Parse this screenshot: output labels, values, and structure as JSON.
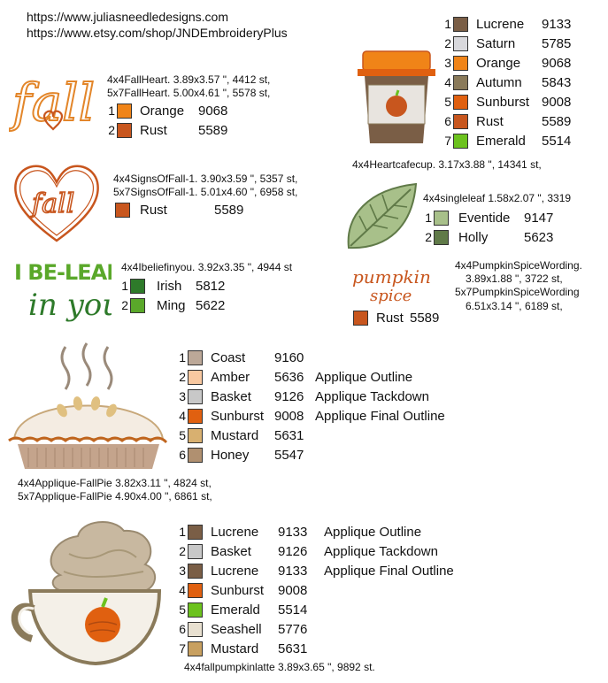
{
  "header": {
    "url1": "https://www.juliasneedledesigns.com",
    "url2": "https://www.etsy.com/shop/JNDEmbroideryPlus"
  },
  "cafecup": {
    "threads": [
      {
        "n": "1",
        "name": "Lucrene",
        "code": "9133",
        "color": "#7a5e46"
      },
      {
        "n": "2",
        "name": "Saturn",
        "code": "5785",
        "color": "#d8d8dc"
      },
      {
        "n": "3",
        "name": "Orange",
        "code": "9068",
        "color": "#f08418"
      },
      {
        "n": "4",
        "name": "Autumn",
        "code": "5843",
        "color": "#8a7a5a"
      },
      {
        "n": "5",
        "name": "Sunburst",
        "code": "9008",
        "color": "#e06010"
      },
      {
        "n": "6",
        "name": "Rust",
        "code": "5589",
        "color": "#c8561e"
      },
      {
        "n": "7",
        "name": "Emerald",
        "code": "5514",
        "color": "#6cc21e"
      }
    ],
    "spec": "4x4Heartcafecup. 3.17x3.88 \", 14341 st,"
  },
  "fallheart": {
    "spec1": "4x4FallHeart. 3.89x3.57 \", 4412 st,",
    "spec2": "5x7FallHeart. 5.00x4.61 \", 5578 st,",
    "threads": [
      {
        "n": "1",
        "name": "Orange",
        "code": "9068",
        "color": "#f08418"
      },
      {
        "n": "2",
        "name": "Rust",
        "code": "5589",
        "color": "#c8561e"
      }
    ]
  },
  "signsoffall": {
    "spec1": "4x4SignsOfFall-1. 3.90x3.59 \", 5357 st,",
    "spec2": "5x7SignsOfFall-1. 5.01x4.60 \", 6958 st,",
    "threads": [
      {
        "name": "Rust",
        "code": "5589",
        "color": "#c8561e"
      }
    ]
  },
  "singleleaf": {
    "spec": "4x4singleleaf 1.58x2.07 \", 3319",
    "threads": [
      {
        "n": "1",
        "name": "Eventide",
        "code": "9147",
        "color": "#a8c08a"
      },
      {
        "n": "2",
        "name": "Holly",
        "code": "5623",
        "color": "#607a48"
      }
    ]
  },
  "believe": {
    "spec": "4x4Ibeliefinyou. 3.92x3.35 \", 4944 st",
    "threads": [
      {
        "n": "1",
        "name": "Irish",
        "code": "5812",
        "color": "#2e7a2a"
      },
      {
        "n": "2",
        "name": "Ming",
        "code": "5622",
        "color": "#5aa82a"
      }
    ]
  },
  "pumpkinspice": {
    "spec1": "4x4PumpkinSpiceWording.",
    "spec2": "3.89x1.88 \", 3722 st,",
    "spec3": "5x7PumpkinSpiceWording",
    "spec4": "6.51x3.14 \", 6189 st,",
    "threads": [
      {
        "name": "Rust",
        "code": "5589",
        "color": "#c8561e"
      }
    ]
  },
  "fallpie": {
    "threads": [
      {
        "n": "1",
        "name": "Coast",
        "code": "9160",
        "note": "",
        "color": "#bca898"
      },
      {
        "n": "2",
        "name": "Amber",
        "code": "5636",
        "note": "Applique Outline",
        "color": "#f8c8a0"
      },
      {
        "n": "3",
        "name": "Basket",
        "code": "9126",
        "note": "Applique Tackdown",
        "color": "#c8c8c8"
      },
      {
        "n": "4",
        "name": "Sunburst",
        "code": "9008",
        "note": "Applique Final Outline",
        "color": "#e06010"
      },
      {
        "n": "5",
        "name": "Mustard",
        "code": "5631",
        "note": "",
        "color": "#d8b070"
      },
      {
        "n": "6",
        "name": "Honey",
        "code": "5547",
        "note": "",
        "color": "#b09070"
      }
    ],
    "spec1": "4x4Applique-FallPie 3.82x3.11 \", 4824 st,",
    "spec2": "5x7Applique-FallPie 4.90x4.00 \", 6861 st,"
  },
  "latte": {
    "threads": [
      {
        "n": "1",
        "name": "Lucrene",
        "code": "9133",
        "note": "Applique Outline",
        "color": "#7a5e46"
      },
      {
        "n": "2",
        "name": "Basket",
        "code": "9126",
        "note": "Applique Tackdown",
        "color": "#c8c8c8"
      },
      {
        "n": "3",
        "name": "Lucrene",
        "code": "9133",
        "note": "Applique Final Outline",
        "color": "#7a5e46"
      },
      {
        "n": "4",
        "name": "Sunburst",
        "code": "9008",
        "note": "",
        "color": "#e06010"
      },
      {
        "n": "5",
        "name": "Emerald",
        "code": "5514",
        "note": "",
        "color": "#6cc21e"
      },
      {
        "n": "6",
        "name": "Seashell",
        "code": "5776",
        "note": "",
        "color": "#e8e0d0"
      },
      {
        "n": "7",
        "name": "Mustard",
        "code": "5631",
        "note": "",
        "color": "#c8a060"
      }
    ],
    "spec": "4x4fallpumpkinlatte 3.89x3.65 \", 9892 st."
  },
  "art_text": {
    "fall1": "fall",
    "fall2": "fall",
    "bl1": "I BE-LEAF",
    "bl2": "in you",
    "ps1": "pumpkin",
    "ps2": "spice"
  }
}
